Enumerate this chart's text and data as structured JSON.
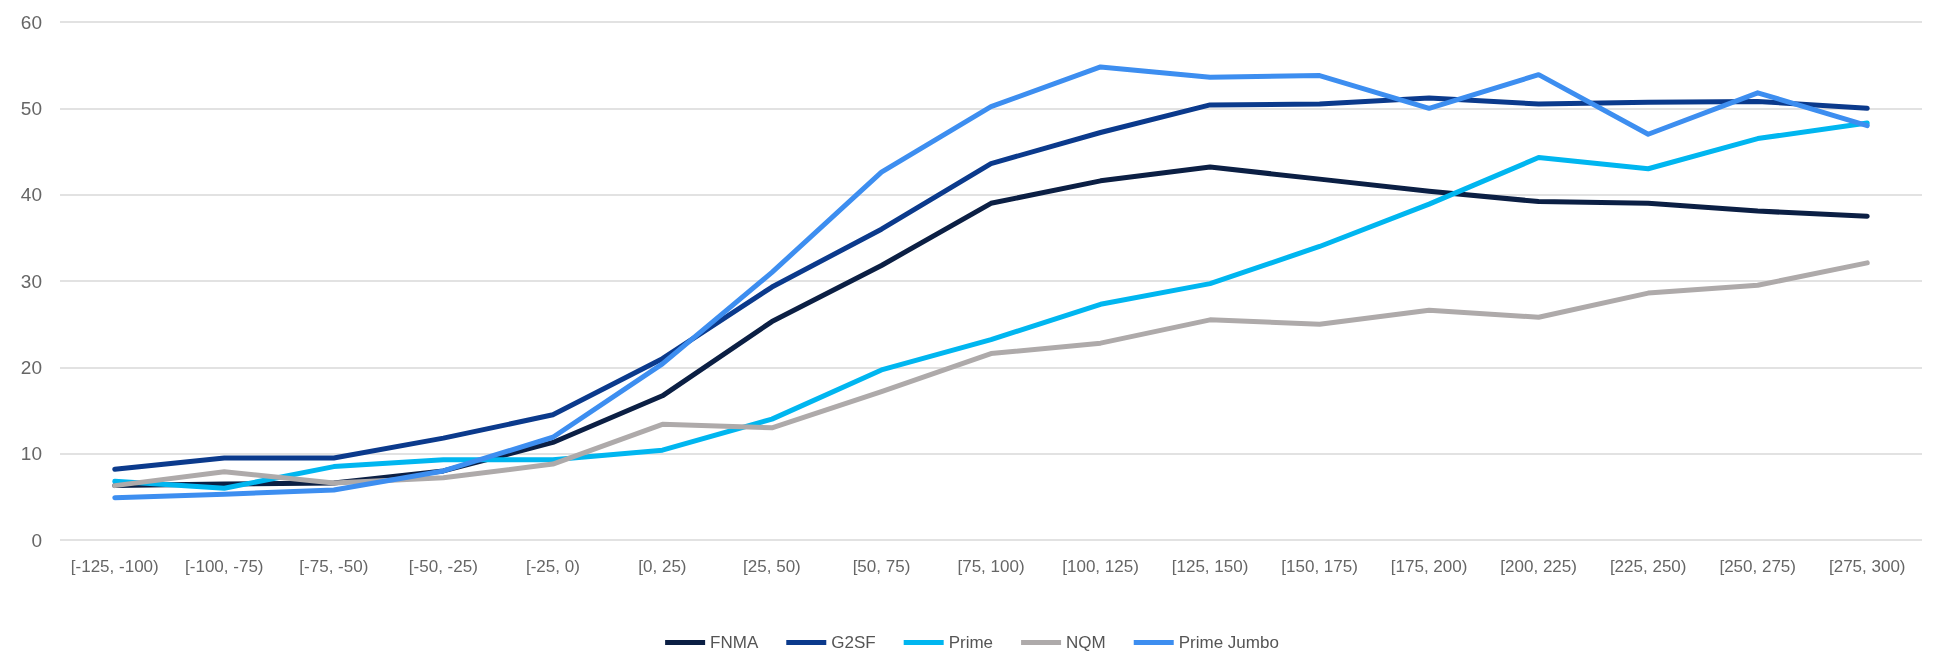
{
  "chart_data": {
    "type": "line",
    "categories": [
      "[-125, -100)",
      "[-100, -75)",
      "[-75, -50)",
      "[-50, -25)",
      "[-25, 0)",
      "[0, 25)",
      "[25, 50)",
      "[50, 75)",
      "[75, 100)",
      "[100, 125)",
      "[125, 150)",
      "[150, 175)",
      "[175, 200)",
      "[200, 225)",
      "[225, 250)",
      "[250, 275)",
      "[275, 300)"
    ],
    "series": [
      {
        "name": "FNMA",
        "color": "#0b1f44",
        "values": [
          6.3,
          6.5,
          6.6,
          8,
          11.3,
          16.7,
          25.3,
          31.8,
          39,
          41.6,
          43.2,
          41.8,
          40.4,
          39.2,
          39,
          38.1,
          37.5
        ]
      },
      {
        "name": "G2SF",
        "color": "#0b3a8c",
        "values": [
          8.2,
          9.5,
          9.5,
          11.8,
          14.5,
          21,
          29.3,
          36,
          43.6,
          47.2,
          50.4,
          50.5,
          51.2,
          50.5,
          50.7,
          50.8,
          50
        ]
      },
      {
        "name": "Prime",
        "color": "#00b6f0",
        "values": [
          6.8,
          6,
          8.5,
          9.3,
          9.3,
          10.4,
          14,
          19.7,
          23.2,
          27.3,
          29.7,
          34,
          38.9,
          44.3,
          43,
          46.5,
          48.3
        ]
      },
      {
        "name": "NQM",
        "color": "#aeaaaa",
        "values": [
          6.3,
          7.9,
          6.6,
          7.2,
          8.8,
          13.4,
          13,
          17.2,
          21.6,
          22.8,
          25.5,
          25,
          26.6,
          25.8,
          28.6,
          29.5,
          32.1
        ]
      },
      {
        "name": "Prime Jumbo",
        "color": "#3d8ef0",
        "values": [
          4.9,
          5.3,
          5.8,
          8,
          11.9,
          20.4,
          31,
          42.6,
          50.2,
          54.8,
          53.6,
          53.8,
          50,
          53.9,
          47,
          51.8,
          48
        ]
      }
    ],
    "ylim": [
      0,
      60
    ],
    "yticks": [
      0,
      10,
      20,
      30,
      40,
      50,
      60
    ],
    "grid": "y",
    "legend": "bottom",
    "marker": "none",
    "line_style": "solid"
  }
}
